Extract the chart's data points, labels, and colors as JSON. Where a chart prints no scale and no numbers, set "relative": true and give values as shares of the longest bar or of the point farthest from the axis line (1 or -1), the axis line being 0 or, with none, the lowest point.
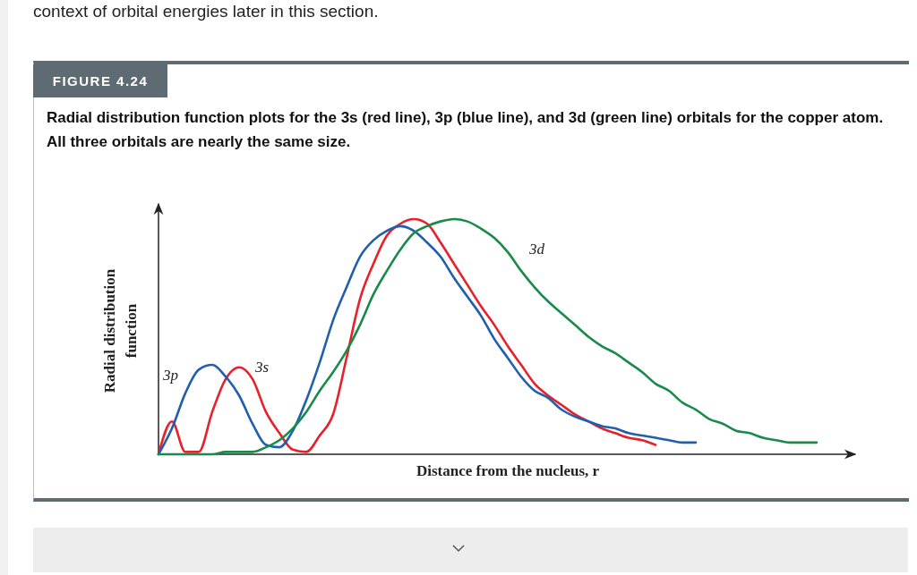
{
  "chart_data": {
    "type": "line",
    "title": "FIGURE 4.24",
    "subtitle": "Radial distribution function plots for the 3s (red line), 3p (blue line), and 3d (green line) orbitals for the copper atom. All three orbitals are nearly the same size.",
    "annotations": [
      "context of orbital energies later in this section."
    ],
    "xlabel": "Distance from the nucleus, r",
    "ylabel": "Radial distribution function",
    "relative": true,
    "categories": [
      null,
      null,
      null,
      null,
      null,
      null,
      null,
      null,
      null,
      null,
      null,
      null,
      null,
      null,
      null,
      null,
      null,
      null,
      null,
      null,
      null,
      null,
      null,
      null,
      null,
      null,
      null,
      null,
      null,
      null,
      null,
      null,
      null,
      null,
      null,
      null,
      null,
      null,
      null,
      null,
      null,
      null,
      null,
      null,
      null,
      null,
      null,
      null,
      null,
      null
    ],
    "series": [
      {
        "name": "3s",
        "color": "#e8202a",
        "values": [
          0,
          0.14,
          0.01,
          0.01,
          0.18,
          0.32,
          0.37,
          0.32,
          0.18,
          0.09,
          0.02,
          0.01,
          0.08,
          0.17,
          0.41,
          0.66,
          0.81,
          0.93,
          0.98,
          1,
          0.98,
          0.9,
          0.81,
          0.72,
          0.63,
          0.55,
          0.46,
          0.38,
          0.3,
          0.25,
          0.21,
          0.17,
          0.14,
          0.11,
          0.09,
          0.07,
          0.06,
          0.04,
          null,
          null,
          null,
          null,
          null,
          null,
          null,
          null,
          null,
          null,
          null,
          null
        ]
      },
      {
        "name": "3p",
        "color": "#1f5fad",
        "values": [
          0,
          0.11,
          0.26,
          0.36,
          0.38,
          0.33,
          0.25,
          0.13,
          0.04,
          0.03,
          0.1,
          0.23,
          0.39,
          0.57,
          0.71,
          0.84,
          0.91,
          0.95,
          0.97,
          0.95,
          0.9,
          0.84,
          0.75,
          0.67,
          0.59,
          0.49,
          0.41,
          0.33,
          0.27,
          0.24,
          0.19,
          0.16,
          0.14,
          0.12,
          0.11,
          0.09,
          0.08,
          0.07,
          0.06,
          0.05,
          0.05,
          null,
          null,
          null,
          null,
          null,
          null,
          null,
          null,
          null
        ]
      },
      {
        "name": "3d",
        "color": "#1a8a4a",
        "values": [
          0,
          0,
          0,
          0,
          0,
          0.01,
          0.01,
          0.01,
          0.03,
          0.06,
          0.11,
          0.18,
          0.27,
          0.35,
          0.44,
          0.55,
          0.68,
          0.78,
          0.87,
          0.94,
          0.97,
          0.99,
          1,
          0.99,
          0.96,
          0.92,
          0.86,
          0.78,
          0.71,
          0.65,
          0.6,
          0.55,
          0.5,
          0.46,
          0.43,
          0.39,
          0.35,
          0.3,
          0.27,
          0.22,
          0.19,
          0.15,
          0.13,
          0.1,
          0.09,
          0.07,
          0.06,
          0.05,
          0.05,
          0.05
        ]
      }
    ]
  }
}
